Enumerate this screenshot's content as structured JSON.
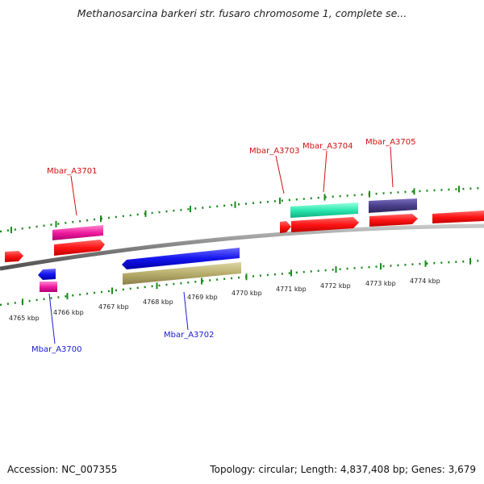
{
  "title": "Methanosarcina barkeri str. fusaro chromosome 1, complete se...",
  "footer": {
    "accession": "Accession: NC_007355",
    "summary": "Topology: circular; Length: 4,837,408 bp; Genes: 3,679"
  },
  "ticks": [
    "4765 kbp",
    "4766 kbp",
    "4767 kbp",
    "4768 kbp",
    "4769 kbp",
    "4770 kbp",
    "4771 kbp",
    "4772 kbp",
    "4773 kbp",
    "4774 kbp"
  ],
  "gene_labels": [
    {
      "name": "Mbar_A3700",
      "color": "#1a1ad0"
    },
    {
      "name": "Mbar_A3701",
      "color": "#d01010"
    },
    {
      "name": "Mbar_A3702",
      "color": "#1a1ad0"
    },
    {
      "name": "Mbar_A3703",
      "color": "#d01010"
    },
    {
      "name": "Mbar_A3704",
      "color": "#d01010"
    },
    {
      "name": "Mbar_A3705",
      "color": "#d01010"
    }
  ],
  "colors": {
    "forward_cds": "#ff1a1a",
    "reverse_cds": "#1414ee",
    "gene_magenta": "#f01ca0",
    "gene_teal": "#2ce8b0",
    "gene_slate": "#4a3f8a",
    "gene_khaki": "#b8ae6c",
    "tick_green": "#1a8a1a",
    "backbone": "#8a8a8a"
  }
}
